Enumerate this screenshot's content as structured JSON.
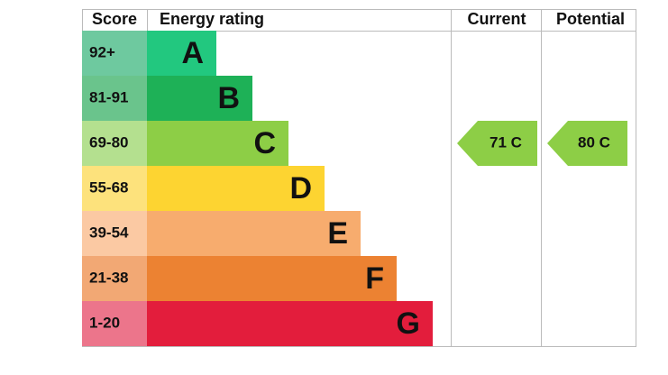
{
  "header": {
    "score": "Score",
    "rating": "Energy rating",
    "current": "Current",
    "potential": "Potential"
  },
  "rows": [
    {
      "score": "92+",
      "band": "A",
      "color": "#22c87f",
      "score_color": "#6ec99f"
    },
    {
      "score": "81-91",
      "band": "B",
      "color": "#1eb157",
      "score_color": "#6ac48c"
    },
    {
      "score": "69-80",
      "band": "C",
      "color": "#8dce46",
      "score_color": "#b4e08f"
    },
    {
      "score": "55-68",
      "band": "D",
      "color": "#fdd431",
      "score_color": "#fde27c"
    },
    {
      "score": "39-54",
      "band": "E",
      "color": "#f7ac6e",
      "score_color": "#fbc9a3"
    },
    {
      "score": "21-38",
      "band": "F",
      "color": "#ec8232",
      "score_color": "#f2a874"
    },
    {
      "score": "1-20",
      "band": "G",
      "color": "#e31d3c",
      "score_color": "#ec758b"
    }
  ],
  "current": {
    "label": "71 C",
    "color": "#8dce46"
  },
  "potential": {
    "label": "80 C",
    "color": "#8dce46"
  }
}
